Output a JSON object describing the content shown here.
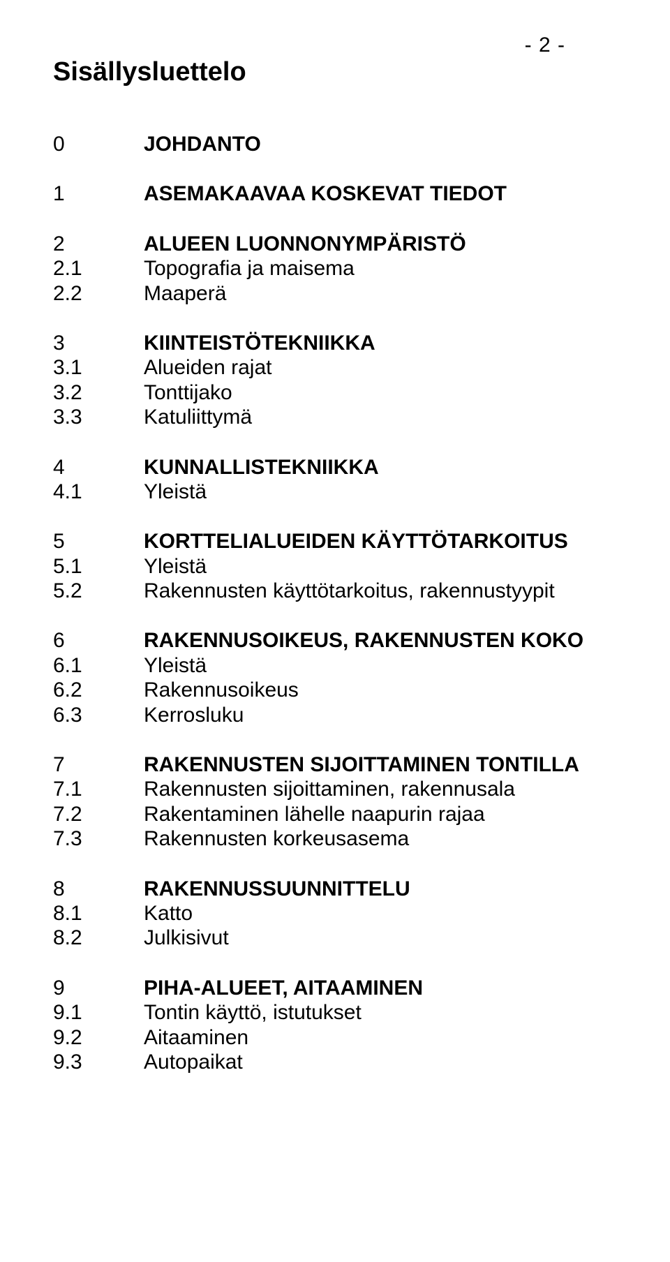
{
  "page_number": "- 2 -",
  "title": "Sisällysluettelo",
  "colors": {
    "background": "#ffffff",
    "text": "#000000"
  },
  "typography": {
    "font_family": "Arial, Helvetica, sans-serif",
    "title_fontsize_pt": 28,
    "body_fontsize_pt": 22,
    "line_height": 1.18
  },
  "sections": [
    {
      "items": [
        {
          "num": "0",
          "text": "JOHDANTO",
          "bold": true
        }
      ]
    },
    {
      "items": [
        {
          "num": "1",
          "text": "ASEMAKAAVAA KOSKEVAT TIEDOT",
          "bold": true
        }
      ]
    },
    {
      "items": [
        {
          "num": "2",
          "text": "ALUEEN LUONNONYMPÄRISTÖ",
          "bold": true
        },
        {
          "num": "2.1",
          "text": "Topografia ja maisema",
          "bold": false
        },
        {
          "num": "2.2",
          "text": "Maaperä",
          "bold": false
        }
      ]
    },
    {
      "items": [
        {
          "num": "3",
          "text": "KIINTEISTÖTEKNIIKKA",
          "bold": true
        },
        {
          "num": "3.1",
          "text": "Alueiden rajat",
          "bold": false
        },
        {
          "num": "3.2",
          "text": "Tonttijako",
          "bold": false
        },
        {
          "num": "3.3",
          "text": "Katuliittymä",
          "bold": false
        }
      ]
    },
    {
      "items": [
        {
          "num": "4",
          "text": "KUNNALLISTEKNIIKKA",
          "bold": true
        },
        {
          "num": "4.1",
          "text": "Yleistä",
          "bold": false
        }
      ]
    },
    {
      "items": [
        {
          "num": "5",
          "text": "KORTTELIALUEIDEN KÄYTTÖTARKOITUS",
          "bold": true
        },
        {
          "num": "5.1",
          "text": "Yleistä",
          "bold": false
        },
        {
          "num": "5.2",
          "text": "Rakennusten käyttötarkoitus, rakennustyypit",
          "bold": false
        }
      ]
    },
    {
      "items": [
        {
          "num": "6",
          "text": "RAKENNUSOIKEUS, RAKENNUSTEN KOKO",
          "bold": true
        },
        {
          "num": "6.1",
          "text": "Yleistä",
          "bold": false
        },
        {
          "num": "6.2",
          "text": "Rakennusoikeus",
          "bold": false
        },
        {
          "num": "6.3",
          "text": "Kerrosluku",
          "bold": false
        }
      ]
    },
    {
      "items": [
        {
          "num": "7",
          "text": "RAKENNUSTEN SIJOITTAMINEN TONTILLA",
          "bold": true
        },
        {
          "num": "7.1",
          "text": "Rakennusten sijoittaminen, rakennusala",
          "bold": false
        },
        {
          "num": "7.2",
          "text": "Rakentaminen lähelle naapurin rajaa",
          "bold": false
        },
        {
          "num": "7.3",
          "text": "Rakennusten korkeusasema",
          "bold": false
        }
      ]
    },
    {
      "items": [
        {
          "num": "8",
          "text": "RAKENNUSSUUNNITTELU",
          "bold": true
        },
        {
          "num": "8.1",
          "text": "Katto",
          "bold": false
        },
        {
          "num": "8.2",
          "text": "Julkisivut",
          "bold": false
        }
      ]
    },
    {
      "items": [
        {
          "num": "9",
          "text": "PIHA-ALUEET, AITAAMINEN",
          "bold": true
        },
        {
          "num": "9.1",
          "text": "Tontin käyttö, istutukset",
          "bold": false
        },
        {
          "num": "9.2",
          "text": "Aitaaminen",
          "bold": false
        },
        {
          "num": "9.3",
          "text": "Autopaikat",
          "bold": false
        }
      ]
    }
  ]
}
